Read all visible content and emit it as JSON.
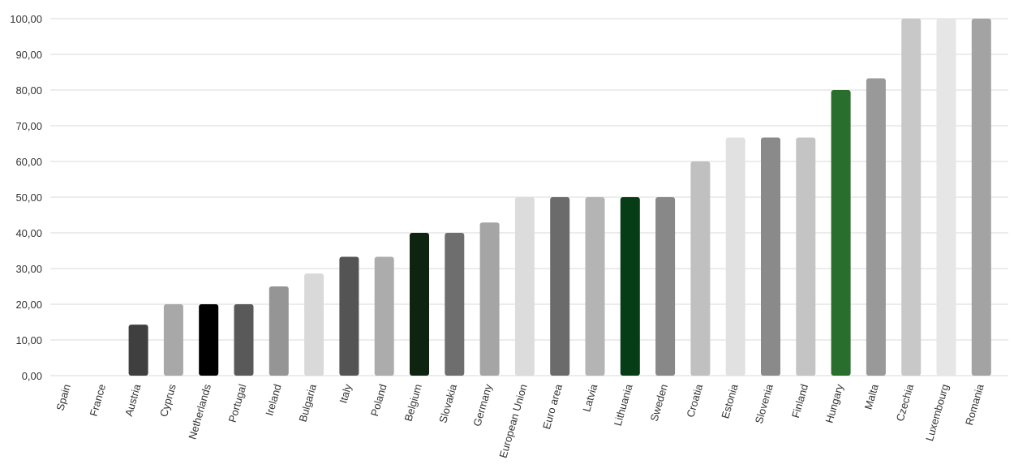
{
  "chart_data": {
    "type": "bar",
    "title": "",
    "xlabel": "",
    "ylabel": "",
    "ylim": [
      0,
      100
    ],
    "yticks": [
      "0,00",
      "10,00",
      "20,00",
      "30,00",
      "40,00",
      "50,00",
      "60,00",
      "70,00",
      "80,00",
      "90,00",
      "100,00"
    ],
    "grid": true,
    "categories": [
      "Spain",
      "France",
      "Austria",
      "Cyprus",
      "Netherlands",
      "Portugal",
      "Ireland",
      "Bulgaria",
      "Italy",
      "Poland",
      "Belgium",
      "Slovakia",
      "Germany",
      "European Union",
      "Euro area",
      "Latvia",
      "Lithuania",
      "Sweden",
      "Croatia",
      "Estonia",
      "Slovenia",
      "Finland",
      "Hungary",
      "Malta",
      "Czechia",
      "Luxembourg",
      "Romania"
    ],
    "values": [
      0,
      0,
      14.3,
      20,
      20,
      20,
      25,
      28.6,
      33.3,
      33.3,
      40,
      40,
      42.9,
      50,
      50,
      50,
      50,
      50,
      60,
      66.7,
      66.7,
      66.7,
      80,
      83.3,
      100,
      100,
      100
    ],
    "colors": [
      "#cccccc",
      "#cccccc",
      "#3f3f3f",
      "#a8a8a8",
      "#000000",
      "#595959",
      "#959595",
      "#d9d9d9",
      "#545454",
      "#acacac",
      "#0f2410",
      "#6e6e6e",
      "#a5a5a5",
      "#dcdcdc",
      "#6b6b6b",
      "#b4b4b4",
      "#063d16",
      "#888888",
      "#c0c0c0",
      "#e1e1e1",
      "#8a8a8a",
      "#c4c4c4",
      "#2a6e2e",
      "#999999",
      "#c8c8c8",
      "#e6e6e6",
      "#a3a3a3"
    ]
  }
}
